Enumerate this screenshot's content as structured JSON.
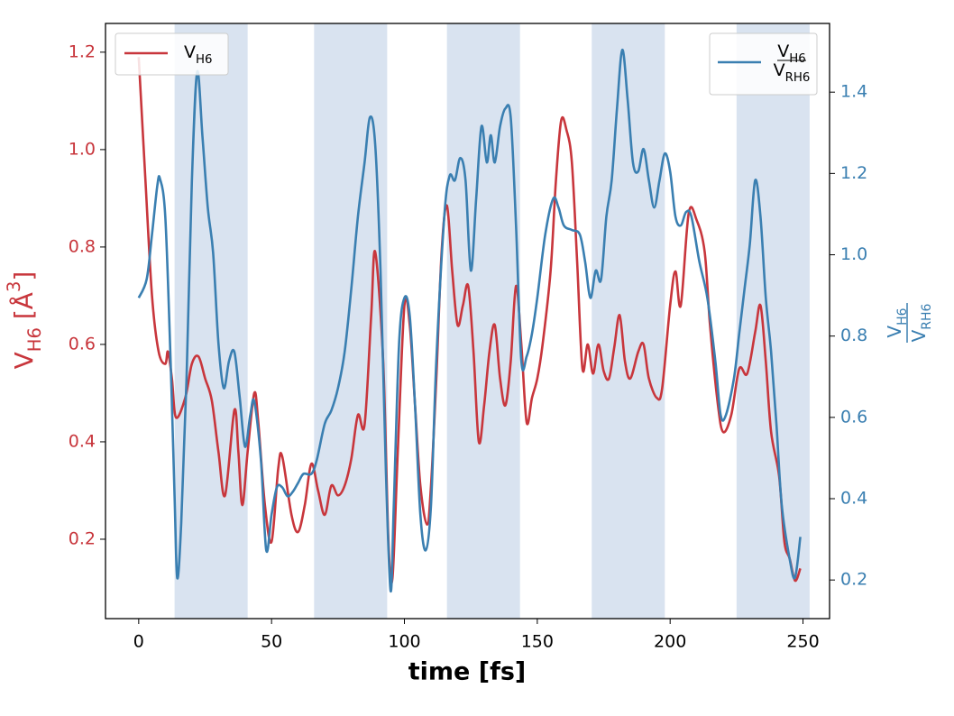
{
  "chart_data": {
    "type": "line",
    "xlabel": "time [fs]",
    "ylabel": "VH6 [Å3]",
    "y2label": {
      "numerator": "VH6",
      "denominator": "VRH6"
    },
    "xlim": [
      -12.5,
      260
    ],
    "xticks": [
      0,
      50,
      100,
      150,
      200,
      250
    ],
    "ylim": [
      0.037,
      1.259
    ],
    "yticks": [
      0.2,
      0.4,
      0.6,
      0.8,
      {
        "value": 1,
        "label": "1.0"
      },
      1.2
    ],
    "y2lim": [
      0.105,
      1.569
    ],
    "y2ticks": [
      0.2,
      0.4,
      0.6,
      0.8,
      {
        "value": 1,
        "label": "1.0"
      },
      1.2,
      1.4
    ],
    "spans": [
      [
        13.5,
        41
      ],
      [
        66,
        93.5
      ],
      [
        116,
        143.5
      ],
      [
        170.5,
        198
      ],
      [
        225,
        252.5
      ]
    ],
    "span_color": "#d9e3f0",
    "series": [
      {
        "name": "VH6",
        "color": "#c8363c",
        "legend": "upper left",
        "x": [
          0,
          2.5,
          5,
          7.5,
          10,
          11,
          12.5,
          14,
          17.5,
          20,
          22.5,
          25,
          27.5,
          30,
          32.5,
          36,
          37.5,
          39,
          41,
          43.5,
          45,
          47.5,
          50,
          52.5,
          54,
          57.5,
          60,
          62.5,
          65,
          67.5,
          70,
          72.5,
          75,
          77.5,
          80,
          82.5,
          85,
          87.5,
          89,
          92,
          94,
          95.5,
          97.5,
          100,
          102,
          104,
          106,
          108.5,
          110,
          112,
          114,
          116,
          118,
          120,
          122,
          124,
          126,
          128,
          130,
          132,
          134,
          136,
          138,
          140,
          142,
          144,
          146,
          148,
          150,
          152,
          155,
          157,
          159,
          161,
          163,
          165,
          167,
          169,
          171,
          173,
          175,
          177,
          179,
          181,
          183,
          185,
          188,
          190,
          192,
          195,
          197,
          200,
          202,
          204,
          207,
          210,
          213,
          215,
          218,
          220,
          223,
          226,
          229,
          232,
          234,
          236,
          238,
          241,
          243,
          245,
          247,
          249
        ],
        "values": [
          1.19,
          0.94,
          0.7,
          0.585,
          0.56,
          0.585,
          0.53,
          0.45,
          0.49,
          0.56,
          0.575,
          0.53,
          0.485,
          0.38,
          0.29,
          0.465,
          0.38,
          0.27,
          0.38,
          0.5,
          0.44,
          0.27,
          0.195,
          0.345,
          0.37,
          0.25,
          0.215,
          0.27,
          0.355,
          0.3,
          0.25,
          0.31,
          0.29,
          0.31,
          0.365,
          0.455,
          0.435,
          0.66,
          0.79,
          0.565,
          0.195,
          0.12,
          0.38,
          0.68,
          0.64,
          0.475,
          0.31,
          0.23,
          0.31,
          0.53,
          0.79,
          0.885,
          0.75,
          0.64,
          0.68,
          0.72,
          0.585,
          0.4,
          0.475,
          0.585,
          0.64,
          0.53,
          0.475,
          0.565,
          0.72,
          0.6,
          0.44,
          0.49,
          0.53,
          0.6,
          0.75,
          0.935,
          1.06,
          1.04,
          0.975,
          0.77,
          0.55,
          0.6,
          0.54,
          0.6,
          0.545,
          0.53,
          0.595,
          0.66,
          0.565,
          0.53,
          0.585,
          0.6,
          0.53,
          0.49,
          0.51,
          0.68,
          0.75,
          0.68,
          0.87,
          0.855,
          0.79,
          0.64,
          0.475,
          0.42,
          0.455,
          0.55,
          0.54,
          0.625,
          0.68,
          0.565,
          0.42,
          0.33,
          0.195,
          0.16,
          0.115,
          0.14
        ]
      },
      {
        "name": {
          "numerator": "VH6",
          "denominator": "VRH6"
        },
        "color": "#3a7fb1",
        "axis": "y2",
        "legend": "upper right",
        "x": [
          0,
          3,
          5,
          7,
          8,
          10,
          12,
          13.5,
          14.5,
          16,
          18,
          20,
          22,
          24,
          26,
          28,
          30,
          32,
          34,
          36,
          38,
          40,
          42,
          43.5,
          46,
          48,
          50,
          52,
          54,
          56,
          58,
          60,
          62,
          65,
          67,
          70,
          72.5,
          75,
          77.5,
          80,
          82.5,
          85,
          87,
          89,
          91,
          93,
          94.8,
          96,
          98,
          100,
          102,
          104,
          106,
          108,
          110,
          112,
          115,
          117,
          119,
          121,
          123,
          125,
          127,
          129,
          131,
          132.5,
          134,
          136,
          138,
          140,
          142,
          144,
          146,
          148,
          150,
          153,
          156,
          158,
          160,
          163,
          166,
          168,
          170,
          172,
          174,
          176,
          178,
          180,
          182,
          184,
          186,
          188,
          190,
          192,
          194,
          196,
          198,
          200,
          202,
          204,
          206,
          208,
          211,
          214,
          217,
          219,
          221,
          224,
          226,
          228,
          230,
          232,
          234,
          236,
          238,
          240,
          242,
          245,
          247,
          249
        ],
        "values": [
          0.894,
          0.94,
          1.05,
          1.17,
          1.187,
          1.094,
          0.739,
          0.405,
          0.205,
          0.34,
          0.695,
          1.18,
          1.45,
          1.29,
          1.116,
          1.005,
          0.783,
          0.672,
          0.739,
          0.761,
          0.65,
          0.528,
          0.606,
          0.639,
          0.495,
          0.273,
          0.361,
          0.428,
          0.428,
          0.406,
          0.417,
          0.439,
          0.461,
          0.461,
          0.495,
          0.584,
          0.617,
          0.672,
          0.761,
          0.916,
          1.094,
          1.227,
          1.338,
          1.271,
          0.961,
          0.473,
          0.173,
          0.384,
          0.783,
          0.894,
          0.85,
          0.628,
          0.361,
          0.273,
          0.384,
          0.739,
          1.094,
          1.194,
          1.183,
          1.238,
          1.183,
          0.961,
          1.138,
          1.316,
          1.227,
          1.294,
          1.227,
          1.316,
          1.36,
          1.338,
          1.072,
          0.739,
          0.75,
          0.806,
          0.894,
          1.05,
          1.138,
          1.116,
          1.072,
          1.061,
          1.05,
          0.983,
          0.894,
          0.961,
          0.939,
          1.094,
          1.183,
          1.36,
          1.504,
          1.382,
          1.227,
          1.205,
          1.26,
          1.183,
          1.116,
          1.183,
          1.249,
          1.205,
          1.094,
          1.072,
          1.105,
          1.094,
          0.983,
          0.894,
          0.739,
          0.606,
          0.606,
          0.695,
          0.806,
          0.916,
          1.027,
          1.183,
          1.094,
          0.894,
          0.761,
          0.584,
          0.384,
          0.251,
          0.206,
          0.306
        ]
      }
    ]
  }
}
